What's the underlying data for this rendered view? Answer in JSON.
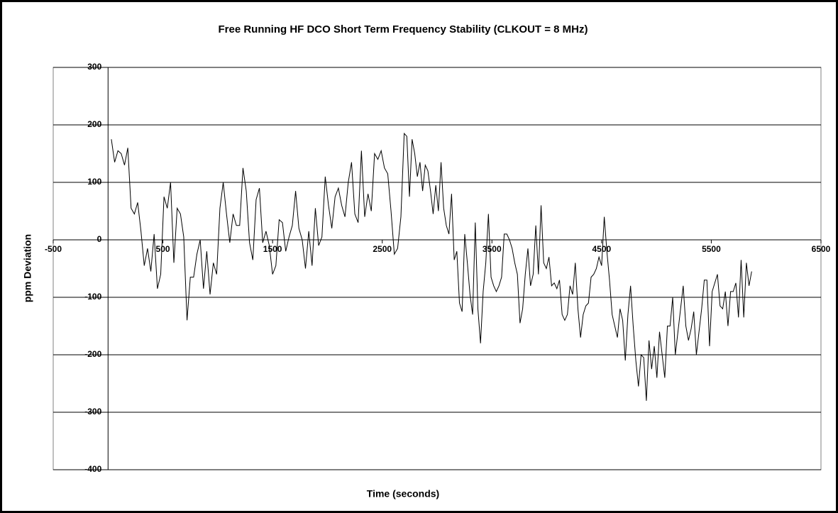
{
  "chart_data": {
    "type": "line",
    "title": "Free Running HF DCO Short Term Frequency Stability (CLKOUT = 8 MHz)",
    "x_label": "Time (seconds)",
    "y_label": "ppm Deviation",
    "xlim": [
      -500,
      6500
    ],
    "xticks": [
      -500,
      500,
      1500,
      2500,
      3500,
      4500,
      5500,
      6500
    ],
    "ylim": [
      -400,
      300
    ],
    "yticks": [
      -400,
      -300,
      -200,
      -100,
      0,
      100,
      200,
      300
    ],
    "grid": true,
    "x": [
      30,
      60,
      90,
      120,
      150,
      180,
      210,
      240,
      270,
      300,
      330,
      360,
      390,
      420,
      450,
      480,
      510,
      540,
      570,
      600,
      630,
      660,
      690,
      720,
      750,
      780,
      810,
      840,
      870,
      900,
      930,
      960,
      990,
      1020,
      1050,
      1080,
      1110,
      1140,
      1170,
      1200,
      1230,
      1260,
      1290,
      1320,
      1350,
      1380,
      1410,
      1440,
      1470,
      1500,
      1530,
      1560,
      1590,
      1620,
      1650,
      1680,
      1710,
      1740,
      1770,
      1800,
      1830,
      1860,
      1890,
      1920,
      1950,
      1980,
      2010,
      2040,
      2070,
      2100,
      2130,
      2160,
      2190,
      2220,
      2250,
      2280,
      2310,
      2340,
      2370,
      2400,
      2430,
      2460,
      2490,
      2520,
      2550,
      2580,
      2610,
      2640,
      2670,
      2700,
      2724,
      2748,
      2772,
      2796,
      2820,
      2844,
      2868,
      2892,
      2916,
      2940,
      2964,
      2988,
      3012,
      3036,
      3060,
      3084,
      3108,
      3132,
      3156,
      3180,
      3204,
      3228,
      3252,
      3276,
      3300,
      3324,
      3348,
      3372,
      3396,
      3420,
      3444,
      3468,
      3492,
      3516,
      3540,
      3564,
      3588,
      3612,
      3636,
      3660,
      3684,
      3708,
      3732,
      3756,
      3780,
      3804,
      3828,
      3852,
      3876,
      3900,
      3924,
      3948,
      3972,
      3996,
      4020,
      4044,
      4068,
      4092,
      4116,
      4140,
      4164,
      4188,
      4212,
      4236,
      4260,
      4284,
      4308,
      4332,
      4356,
      4380,
      4404,
      4428,
      4452,
      4476,
      4500,
      4524,
      4548,
      4572,
      4596,
      4620,
      4644,
      4668,
      4692,
      4716,
      4740,
      4764,
      4788,
      4812,
      4836,
      4860,
      4884,
      4908,
      4932,
      4956,
      4980,
      5004,
      5028,
      5052,
      5076,
      5100,
      5124,
      5148,
      5172,
      5196,
      5220,
      5244,
      5268,
      5292,
      5316,
      5340,
      5364,
      5388,
      5412,
      5436,
      5460,
      5484,
      5508,
      5532,
      5556,
      5580,
      5604,
      5628,
      5652,
      5676,
      5700,
      5724,
      5748,
      5772,
      5796,
      5820,
      5844,
      5868
    ],
    "series": [
      {
        "name": "ppm Deviation",
        "color": "#000000",
        "values": [
          175,
          135,
          155,
          150,
          130,
          160,
          55,
          45,
          65,
          15,
          -45,
          -15,
          -55,
          10,
          -85,
          -60,
          75,
          55,
          100,
          -40,
          55,
          45,
          5,
          -140,
          -65,
          -65,
          -25,
          0,
          -85,
          -20,
          -95,
          -40,
          -60,
          55,
          100,
          45,
          -5,
          45,
          25,
          25,
          125,
          85,
          -5,
          -35,
          70,
          90,
          -5,
          15,
          -10,
          -60,
          -45,
          35,
          30,
          -20,
          5,
          25,
          85,
          20,
          0,
          -50,
          15,
          -45,
          55,
          -10,
          5,
          110,
          60,
          20,
          75,
          90,
          60,
          40,
          100,
          135,
          45,
          30,
          155,
          40,
          80,
          50,
          150,
          140,
          155,
          125,
          115,
          50,
          -25,
          -15,
          40,
          185,
          180,
          75,
          175,
          150,
          110,
          135,
          85,
          130,
          120,
          85,
          45,
          95,
          50,
          135,
          55,
          25,
          10,
          80,
          -35,
          -20,
          -110,
          -125,
          10,
          -40,
          -95,
          -130,
          30,
          -120,
          -180,
          -90,
          -40,
          45,
          -65,
          -80,
          -90,
          -80,
          -65,
          10,
          10,
          0,
          -15,
          -40,
          -60,
          -145,
          -120,
          -60,
          -15,
          -80,
          -60,
          25,
          -60,
          60,
          -40,
          -50,
          -30,
          -80,
          -75,
          -85,
          -70,
          -130,
          -140,
          -130,
          -80,
          -95,
          -40,
          -120,
          -170,
          -130,
          -115,
          -110,
          -65,
          -60,
          -50,
          -30,
          -45,
          40,
          -20,
          -70,
          -130,
          -150,
          -170,
          -120,
          -140,
          -210,
          -130,
          -80,
          -150,
          -210,
          -255,
          -200,
          -205,
          -280,
          -175,
          -225,
          -185,
          -240,
          -160,
          -200,
          -240,
          -150,
          -150,
          -100,
          -200,
          -160,
          -120,
          -80,
          -150,
          -175,
          -155,
          -125,
          -200,
          -160,
          -120,
          -70,
          -70,
          -185,
          -90,
          -75,
          -60,
          -115,
          -120,
          -90,
          -150,
          -90,
          -90,
          -75,
          -135,
          -35,
          -135,
          -40,
          -80,
          -55
        ]
      }
    ]
  }
}
